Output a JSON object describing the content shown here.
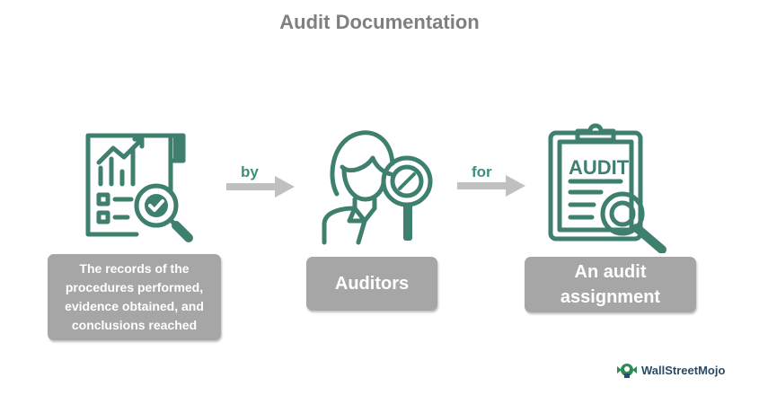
{
  "title": "Audit Documentation",
  "nodes": [
    {
      "label": "The records of the procedures performed, evidence obtained, and conclusions reached",
      "icon": "report-chart-magnifier-icon"
    },
    {
      "label": "Auditors",
      "icon": "auditor-person-magnifier-icon"
    },
    {
      "label": "An audit assignment",
      "icon": "audit-clipboard-magnifier-icon"
    }
  ],
  "connectors": [
    {
      "label": "by"
    },
    {
      "label": "for"
    }
  ],
  "brand": {
    "name": "WallStreetMojo"
  },
  "colors": {
    "accent": "#3e8f7c",
    "icon_stroke": "#3e7f6e",
    "box": "#a6a6a6",
    "arrow": "#c0c0c0",
    "title": "#7f7f7f"
  }
}
